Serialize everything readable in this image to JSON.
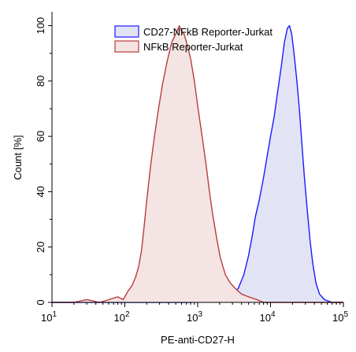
{
  "chart_data": {
    "type": "area",
    "title": "",
    "xlabel": "PE-anti-CD27-H",
    "ylabel": "Count [%]",
    "x_scale": "log",
    "xlim": [
      10,
      100000
    ],
    "ylim": [
      0,
      105
    ],
    "grid": false,
    "legend_position": "top-right",
    "x_ticks": [
      {
        "value": 10,
        "base": "10",
        "exp": "1"
      },
      {
        "value": 100,
        "base": "10",
        "exp": "2"
      },
      {
        "value": 1000,
        "base": "10",
        "exp": "3"
      },
      {
        "value": 10000,
        "base": "10",
        "exp": "4"
      },
      {
        "value": 100000,
        "base": "10",
        "exp": "5"
      }
    ],
    "y_ticks": [
      {
        "value": 0,
        "label": "0"
      },
      {
        "value": 20,
        "label": "20"
      },
      {
        "value": 40,
        "label": "40"
      },
      {
        "value": 60,
        "label": "60"
      },
      {
        "value": 80,
        "label": "80"
      },
      {
        "value": 100,
        "label": "100"
      }
    ],
    "series": [
      {
        "name": "CD27-NFkB Reporter-Jurkat",
        "line_color": "#1a1aff",
        "fill_color": "#e3e3f6",
        "points": [
          [
            10,
            0
          ],
          [
            800,
            0
          ],
          [
            1500,
            0.5
          ],
          [
            2200,
            1
          ],
          [
            3000,
            3
          ],
          [
            3600,
            5
          ],
          [
            4300,
            10
          ],
          [
            5000,
            17
          ],
          [
            5600,
            24
          ],
          [
            6200,
            31
          ],
          [
            7000,
            37
          ],
          [
            8000,
            45
          ],
          [
            9000,
            53
          ],
          [
            10000,
            60
          ],
          [
            11200,
            67
          ],
          [
            12500,
            76
          ],
          [
            14000,
            85
          ],
          [
            15500,
            94
          ],
          [
            17000,
            99
          ],
          [
            18200,
            100
          ],
          [
            19500,
            97
          ],
          [
            21000,
            90
          ],
          [
            23000,
            80
          ],
          [
            25000,
            69
          ],
          [
            27000,
            57
          ],
          [
            29000,
            46
          ],
          [
            32000,
            33
          ],
          [
            35000,
            22
          ],
          [
            38000,
            14
          ],
          [
            42000,
            7
          ],
          [
            47000,
            3
          ],
          [
            55000,
            1
          ],
          [
            70000,
            0
          ],
          [
            100000,
            0
          ]
        ]
      },
      {
        "name": "NFkB Reporter-Jurkat",
        "line_color": "#b83c3c",
        "fill_color": "#f5e4e4",
        "points": [
          [
            10,
            0
          ],
          [
            20,
            0
          ],
          [
            30,
            1
          ],
          [
            45,
            0
          ],
          [
            60,
            1
          ],
          [
            80,
            2
          ],
          [
            95,
            1
          ],
          [
            110,
            4
          ],
          [
            125,
            6
          ],
          [
            140,
            9
          ],
          [
            155,
            13
          ],
          [
            170,
            19
          ],
          [
            185,
            28
          ],
          [
            200,
            37
          ],
          [
            225,
            49
          ],
          [
            255,
            60
          ],
          [
            290,
            70
          ],
          [
            330,
            79
          ],
          [
            380,
            87
          ],
          [
            440,
            94
          ],
          [
            500,
            97
          ],
          [
            560,
            100
          ],
          [
            600,
            98
          ],
          [
            650,
            97
          ],
          [
            720,
            93
          ],
          [
            800,
            88
          ],
          [
            900,
            80
          ],
          [
            1000,
            71
          ],
          [
            1150,
            60
          ],
          [
            1300,
            50
          ],
          [
            1450,
            40
          ],
          [
            1600,
            32
          ],
          [
            1800,
            24
          ],
          [
            2050,
            16
          ],
          [
            2400,
            10
          ],
          [
            2800,
            7
          ],
          [
            3300,
            5
          ],
          [
            4000,
            3
          ],
          [
            5000,
            2
          ],
          [
            6500,
            1
          ],
          [
            8000,
            0
          ],
          [
            10000,
            0
          ],
          [
            100000,
            0
          ]
        ]
      }
    ]
  }
}
